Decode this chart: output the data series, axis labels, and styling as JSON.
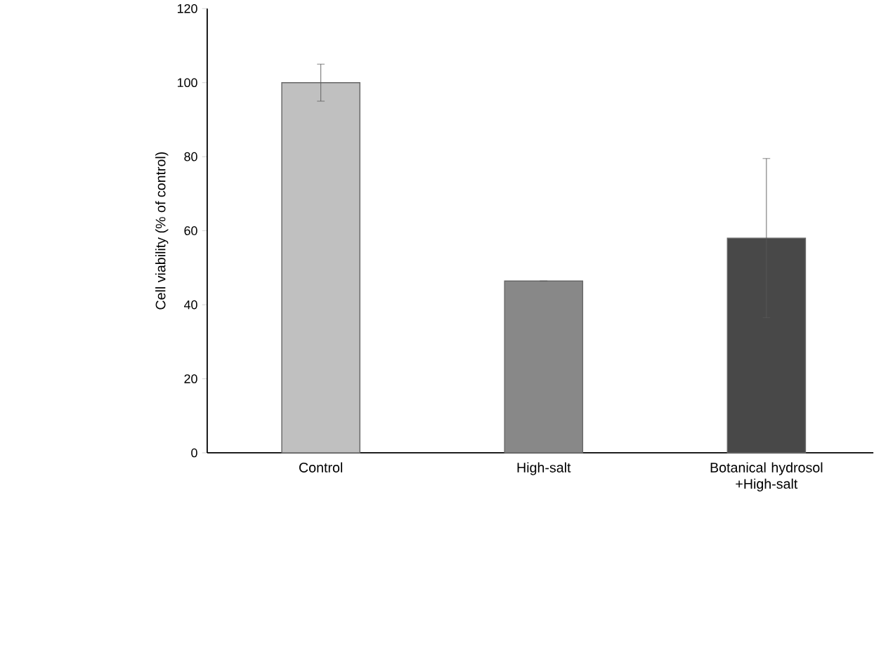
{
  "chart_data": {
    "type": "bar",
    "ylabel": "Cell viability (% of control)",
    "categories": [
      "Control",
      "High-salt",
      "Botanical hydrosol +High-salt"
    ],
    "values": [
      100,
      46.4,
      58
    ],
    "errors": [
      5,
      0,
      21.5
    ],
    "colors": [
      "#c0c0c0",
      "#888888",
      "#484848"
    ],
    "ylim": [
      0,
      120
    ],
    "yticks": [
      0,
      20,
      40,
      60,
      80,
      100,
      120
    ],
    "grid": false
  }
}
